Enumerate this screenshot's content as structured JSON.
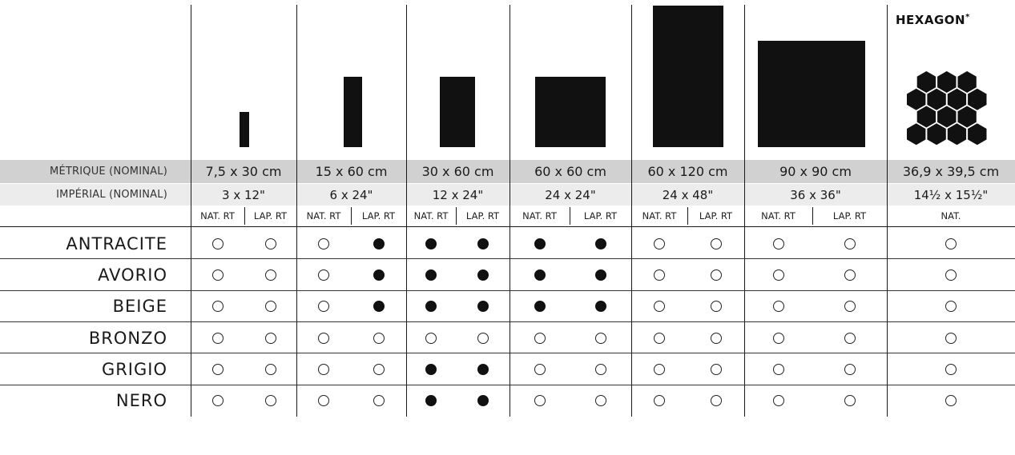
{
  "header": {
    "metric_label": "MÉTRIQUE (NOMINAL)",
    "imperial_label": "IMPÉRIAL (NOMINAL)"
  },
  "sizes": [
    {
      "metric": "7,5 x 30 cm",
      "imperial": "3 x 12\"",
      "finishes": [
        "NAT. RT",
        "LAP. RT"
      ]
    },
    {
      "metric": "15 x 60 cm",
      "imperial": "6 x 24\"",
      "finishes": [
        "NAT. RT",
        "LAP. RT"
      ]
    },
    {
      "metric": "30 x 60 cm",
      "imperial": "12 x 24\"",
      "finishes": [
        "NAT. RT",
        "LAP. RT"
      ]
    },
    {
      "metric": "60 x 60 cm",
      "imperial": "24 x 24\"",
      "finishes": [
        "NAT. RT",
        "LAP. RT"
      ]
    },
    {
      "metric": "60 x 120 cm",
      "imperial": "24 x 48\"",
      "finishes": [
        "NAT. RT",
        "LAP. RT"
      ]
    },
    {
      "metric": "90 x 90 cm",
      "imperial": "36 x 36\"",
      "finishes": [
        "NAT. RT",
        "LAP. RT"
      ]
    },
    {
      "metric": "36,9 x 39,5 cm",
      "imperial": "14½ x 15½\"",
      "finishes": [
        "NAT."
      ]
    }
  ],
  "hexagon": {
    "title": "HEXAGON",
    "mark": "*"
  },
  "colors": [
    {
      "name": "ANTRACITE",
      "availability": [
        0,
        0,
        0,
        1,
        1,
        1,
        1,
        1,
        0,
        0,
        0,
        0,
        0
      ]
    },
    {
      "name": "AVORIO",
      "availability": [
        0,
        0,
        0,
        1,
        1,
        1,
        1,
        1,
        0,
        0,
        0,
        0,
        0
      ]
    },
    {
      "name": "BEIGE",
      "availability": [
        0,
        0,
        0,
        1,
        1,
        1,
        1,
        1,
        0,
        0,
        0,
        0,
        0
      ]
    },
    {
      "name": "BRONZO",
      "availability": [
        0,
        0,
        0,
        0,
        0,
        0,
        0,
        0,
        0,
        0,
        0,
        0,
        0
      ]
    },
    {
      "name": "GRIGIO",
      "availability": [
        0,
        0,
        0,
        0,
        1,
        1,
        0,
        0,
        0,
        0,
        0,
        0,
        0
      ]
    },
    {
      "name": "NERO",
      "availability": [
        0,
        0,
        0,
        0,
        1,
        1,
        0,
        0,
        0,
        0,
        0,
        0,
        0
      ]
    }
  ],
  "legend": {
    "filled": "available",
    "open": "not-available"
  },
  "palette": {
    "ink": "#111111",
    "metric_band": "#d1d1d1",
    "imperial_band": "#ececec"
  }
}
